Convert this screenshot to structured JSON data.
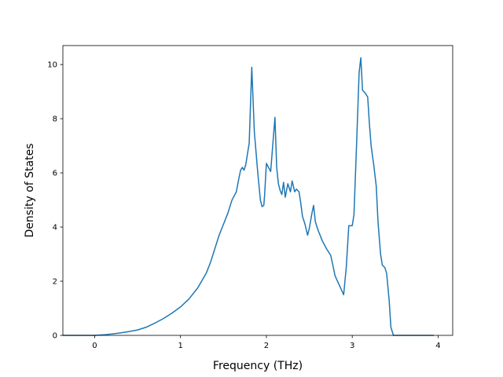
{
  "chart_data": {
    "type": "line",
    "xlabel": "Frequency (THz)",
    "ylabel": "Density of States",
    "xlim": [
      -0.37,
      4.17
    ],
    "ylim": [
      0,
      10.7
    ],
    "x_ticks": [
      0,
      1,
      2,
      3,
      4
    ],
    "y_ticks": [
      0,
      2,
      4,
      6,
      8,
      10
    ],
    "grid": false,
    "series": [
      {
        "color": "#1f77b4",
        "x": [
          -0.37,
          0.0,
          0.1,
          0.2,
          0.3,
          0.4,
          0.5,
          0.6,
          0.7,
          0.8,
          0.9,
          1.0,
          1.1,
          1.2,
          1.3,
          1.35,
          1.4,
          1.45,
          1.5,
          1.55,
          1.6,
          1.65,
          1.68,
          1.7,
          1.72,
          1.74,
          1.76,
          1.8,
          1.83,
          1.86,
          1.9,
          1.93,
          1.95,
          1.97,
          1.98,
          2.0,
          2.05,
          2.1,
          2.12,
          2.14,
          2.16,
          2.18,
          2.2,
          2.22,
          2.25,
          2.28,
          2.3,
          2.33,
          2.35,
          2.38,
          2.4,
          2.42,
          2.45,
          2.48,
          2.5,
          2.53,
          2.55,
          2.57,
          2.6,
          2.65,
          2.7,
          2.75,
          2.8,
          2.85,
          2.9,
          2.93,
          2.96,
          3.0,
          3.02,
          3.05,
          3.08,
          3.1,
          3.12,
          3.15,
          3.18,
          3.2,
          3.22,
          3.25,
          3.28,
          3.3,
          3.33,
          3.35,
          3.38,
          3.4,
          3.43,
          3.45,
          3.48,
          3.5,
          3.53,
          3.55,
          3.58,
          3.6,
          3.7,
          3.95
        ],
        "y": [
          0,
          0,
          0.02,
          0.05,
          0.09,
          0.14,
          0.2,
          0.3,
          0.45,
          0.62,
          0.82,
          1.05,
          1.35,
          1.75,
          2.3,
          2.7,
          3.2,
          3.7,
          4.1,
          4.5,
          5.0,
          5.3,
          5.8,
          6.1,
          6.2,
          6.1,
          6.3,
          7.1,
          9.9,
          7.5,
          6.0,
          5.0,
          4.75,
          4.8,
          5.2,
          6.35,
          6.05,
          8.05,
          6.2,
          5.6,
          5.35,
          5.2,
          5.65,
          5.1,
          5.6,
          5.3,
          5.7,
          5.3,
          5.4,
          5.3,
          4.9,
          4.4,
          4.1,
          3.7,
          3.95,
          4.5,
          4.8,
          4.2,
          3.9,
          3.5,
          3.2,
          2.95,
          2.2,
          1.85,
          1.5,
          2.5,
          4.05,
          4.05,
          4.45,
          7.0,
          9.7,
          10.25,
          9.05,
          8.95,
          8.8,
          7.8,
          7.0,
          6.3,
          5.5,
          4.2,
          3.0,
          2.6,
          2.5,
          2.3,
          1.3,
          0.3,
          0,
          0,
          0,
          0,
          0,
          0,
          0,
          0
        ]
      }
    ]
  }
}
